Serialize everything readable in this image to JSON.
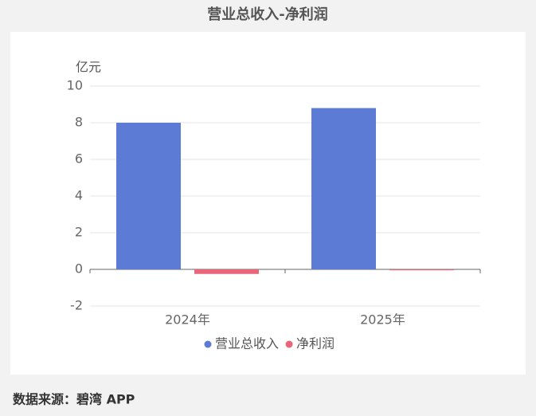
{
  "chart_data": {
    "type": "bar",
    "title": "营业总收入-净利润",
    "y_unit": "亿元",
    "categories": [
      "2024年",
      "2025年"
    ],
    "series": [
      {
        "name": "营业总收入",
        "color": "#5b7bd5",
        "values": [
          8.0,
          8.8
        ]
      },
      {
        "name": "净利润",
        "color": "#e8657a",
        "values": [
          -0.25,
          -0.05
        ]
      }
    ],
    "ylim": [
      -2,
      10
    ],
    "yticks": [
      -2,
      0,
      2,
      4,
      6,
      8,
      10
    ],
    "grid": true,
    "source": "数据来源：碧湾 APP"
  }
}
